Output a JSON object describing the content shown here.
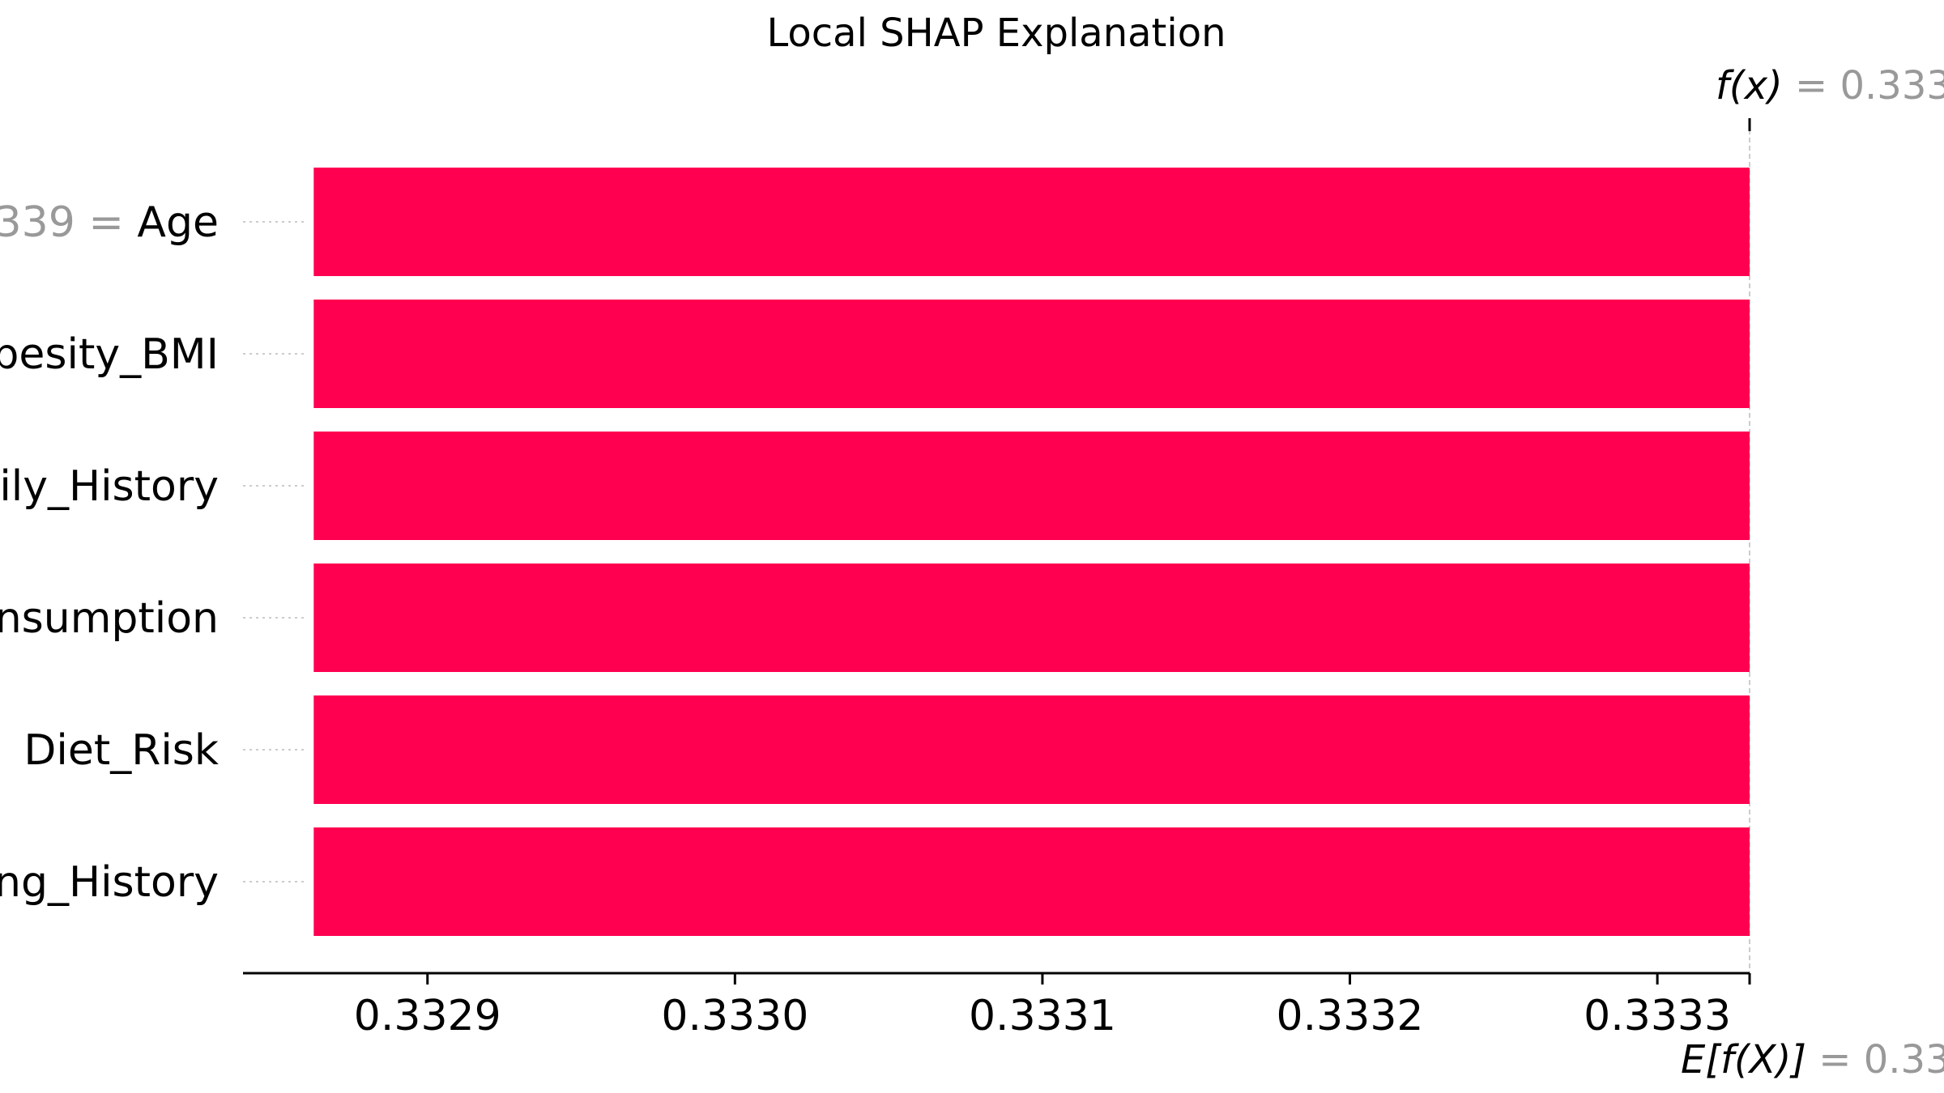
{
  "chart_data": {
    "type": "bar",
    "title": "Local SHAP Explanation",
    "xlabel": "",
    "ylabel": "",
    "xlim": [
      0.33284,
      0.33333
    ],
    "base_value": 0.33333,
    "grid": false,
    "features": [
      {
        "label": "Age",
        "value_prefix": "339 =",
        "start": 0.332863,
        "end": 0.33333
      },
      {
        "label": "besity_BMI",
        "value_prefix": "",
        "start": 0.332863,
        "end": 0.33333
      },
      {
        "label": "ily_History",
        "value_prefix": "",
        "start": 0.332863,
        "end": 0.33333
      },
      {
        "label": "nsumption",
        "value_prefix": "",
        "start": 0.332863,
        "end": 0.33333
      },
      {
        "label": "Diet_Risk",
        "value_prefix": "",
        "start": 0.332863,
        "end": 0.33333
      },
      {
        "label": "ng_History",
        "value_prefix": "",
        "start": 0.332863,
        "end": 0.33333
      }
    ],
    "x_ticks": [
      {
        "value": 0.3329,
        "label": "0.3329"
      },
      {
        "value": 0.333,
        "label": "0.3330"
      },
      {
        "value": 0.3331,
        "label": "0.3331"
      },
      {
        "value": 0.3332,
        "label": "0.3332"
      },
      {
        "value": 0.3333,
        "label": "0.3333"
      }
    ],
    "fx": {
      "symbol": "f(x)",
      "value_text": "= 0.333"
    },
    "efx": {
      "symbol": "E[f(X)]",
      "value_text": "= 0.33"
    },
    "colors": {
      "bar": "#ff0051",
      "muted": "#999999",
      "axis": "#000000",
      "guide": "#cccccc"
    }
  }
}
